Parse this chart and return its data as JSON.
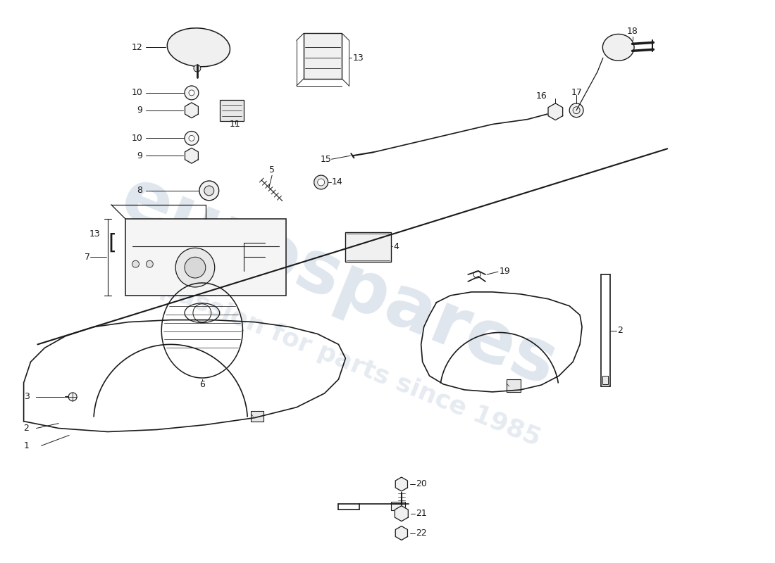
{
  "background_color": "#ffffff",
  "line_color": "#1a1a1a",
  "figsize": [
    11.0,
    8.0
  ],
  "dpi": 100
}
